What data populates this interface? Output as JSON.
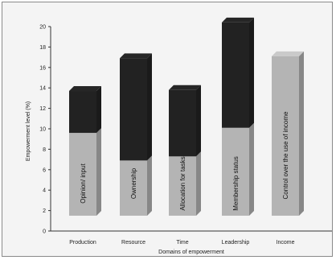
{
  "chart_data": {
    "type": "bar",
    "stacked": true,
    "xlabel": "Domains of empowerment",
    "ylabel": "Empowerment level (%)",
    "ylim": [
      0,
      20
    ],
    "yticks": [
      0,
      2,
      4,
      6,
      8,
      10,
      12,
      14,
      16,
      18,
      20
    ],
    "grid": false,
    "legend": "none",
    "categories": [
      "Production",
      "Resource",
      "Time",
      "Leadership",
      "Income"
    ],
    "bar_labels": [
      "Opinion/ input",
      "Ownership",
      "Allocation for tasks",
      "Membership status",
      "Control over the use of income"
    ],
    "series": [
      {
        "values": [
          9.6,
          6.9,
          7.3,
          10.1,
          17.1
        ],
        "color": "#b4b4b4"
      },
      {
        "values": [
          4.1,
          10.0,
          6.5,
          10.3,
          0
        ],
        "color": "#222222"
      }
    ]
  }
}
